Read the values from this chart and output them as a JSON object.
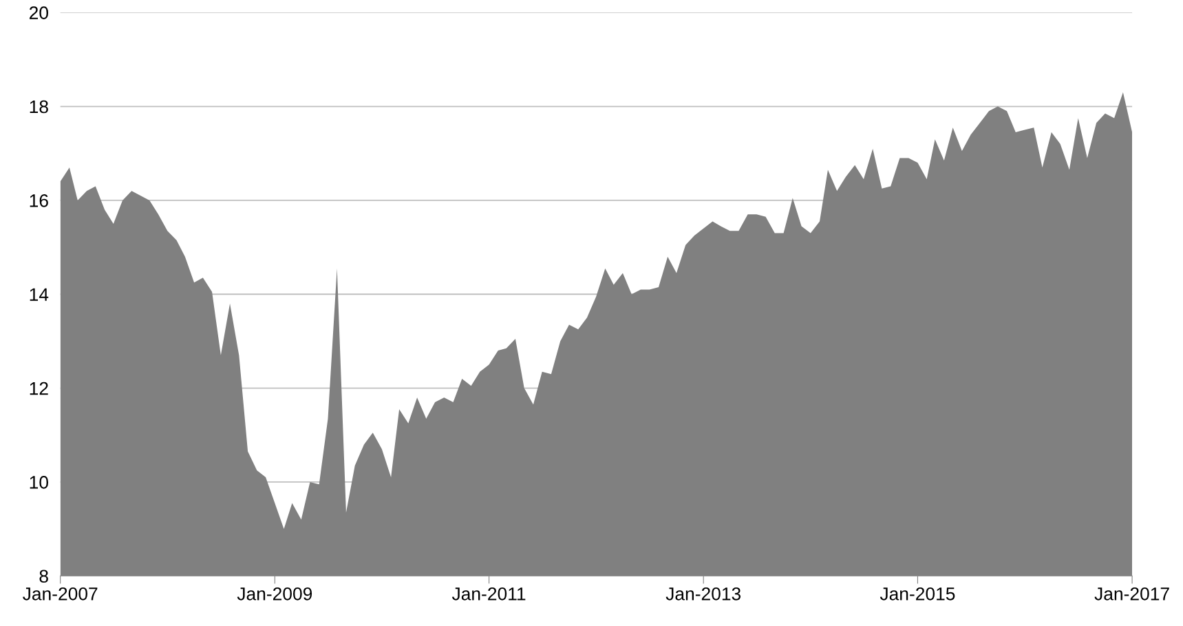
{
  "chart_data": {
    "type": "area",
    "x": [
      "2007-01",
      "2007-02",
      "2007-03",
      "2007-04",
      "2007-05",
      "2007-06",
      "2007-07",
      "2007-08",
      "2007-09",
      "2007-10",
      "2007-11",
      "2007-12",
      "2008-01",
      "2008-02",
      "2008-03",
      "2008-04",
      "2008-05",
      "2008-06",
      "2008-07",
      "2008-08",
      "2008-09",
      "2008-10",
      "2008-11",
      "2008-12",
      "2009-01",
      "2009-02",
      "2009-03",
      "2009-04",
      "2009-05",
      "2009-06",
      "2009-07",
      "2009-08",
      "2009-09",
      "2009-10",
      "2009-11",
      "2009-12",
      "2010-01",
      "2010-02",
      "2010-03",
      "2010-04",
      "2010-05",
      "2010-06",
      "2010-07",
      "2010-08",
      "2010-09",
      "2010-10",
      "2010-11",
      "2010-12",
      "2011-01",
      "2011-02",
      "2011-03",
      "2011-04",
      "2011-05",
      "2011-06",
      "2011-07",
      "2011-08",
      "2011-09",
      "2011-10",
      "2011-11",
      "2011-12",
      "2012-01",
      "2012-02",
      "2012-03",
      "2012-04",
      "2012-05",
      "2012-06",
      "2012-07",
      "2012-08",
      "2012-09",
      "2012-10",
      "2012-11",
      "2012-12",
      "2013-01",
      "2013-02",
      "2013-03",
      "2013-04",
      "2013-05",
      "2013-06",
      "2013-07",
      "2013-08",
      "2013-09",
      "2013-10",
      "2013-11",
      "2013-12",
      "2014-01",
      "2014-02",
      "2014-03",
      "2014-04",
      "2014-05",
      "2014-06",
      "2014-07",
      "2014-08",
      "2014-09",
      "2014-10",
      "2014-11",
      "2014-12",
      "2015-01",
      "2015-02",
      "2015-03",
      "2015-04",
      "2015-05",
      "2015-06",
      "2015-07",
      "2015-08",
      "2015-09",
      "2015-10",
      "2015-11",
      "2015-12",
      "2016-01",
      "2016-02",
      "2016-03",
      "2016-04",
      "2016-05",
      "2016-06",
      "2016-07",
      "2016-08",
      "2016-09",
      "2016-10",
      "2016-11",
      "2016-12",
      "2017-01"
    ],
    "series": [
      {
        "color": "#808080",
        "values": [
          16.4,
          16.7,
          16.0,
          16.2,
          16.3,
          15.8,
          15.5,
          16.0,
          16.2,
          16.1,
          16.0,
          15.7,
          15.35,
          15.15,
          14.8,
          14.25,
          14.35,
          14.05,
          12.7,
          13.8,
          12.7,
          10.65,
          10.25,
          10.1,
          9.55,
          9.0,
          9.55,
          9.2,
          10.0,
          9.95,
          11.35,
          14.55,
          9.35,
          10.35,
          10.8,
          11.05,
          10.7,
          10.1,
          11.55,
          11.25,
          11.8,
          11.35,
          11.7,
          11.8,
          11.7,
          12.2,
          12.05,
          12.35,
          12.5,
          12.8,
          12.85,
          13.05,
          12.0,
          11.65,
          12.35,
          12.3,
          13.0,
          13.35,
          13.25,
          13.5,
          13.95,
          14.55,
          14.2,
          14.45,
          14.0,
          14.1,
          14.1,
          14.15,
          14.8,
          14.45,
          15.05,
          15.25,
          15.4,
          15.55,
          15.45,
          15.35,
          15.35,
          15.7,
          15.7,
          15.65,
          15.3,
          15.3,
          16.05,
          15.45,
          15.3,
          15.55,
          16.65,
          16.2,
          16.5,
          16.75,
          16.45,
          17.1,
          16.25,
          16.3,
          16.9,
          16.9,
          16.8,
          16.45,
          17.3,
          16.85,
          17.55,
          17.05,
          17.4,
          17.65,
          17.9,
          18.0,
          17.9,
          17.45,
          17.5,
          17.55,
          16.7,
          17.45,
          17.2,
          16.65,
          17.75,
          16.9,
          17.65,
          17.85,
          17.75,
          18.3,
          17.45
        ]
      }
    ],
    "xlim": [
      "2007-01",
      "2017-01"
    ],
    "xticks": [
      {
        "value": "2007-01",
        "label": "Jan-2007"
      },
      {
        "value": "2009-01",
        "label": "Jan-2009"
      },
      {
        "value": "2011-01",
        "label": "Jan-2011"
      },
      {
        "value": "2013-01",
        "label": "Jan-2013"
      },
      {
        "value": "2015-01",
        "label": "Jan-2015"
      },
      {
        "value": "2017-01",
        "label": "Jan-2017"
      }
    ],
    "ylim": [
      8,
      20
    ],
    "yticks": [
      8,
      10,
      12,
      14,
      16,
      18,
      20
    ],
    "grid": "y"
  }
}
